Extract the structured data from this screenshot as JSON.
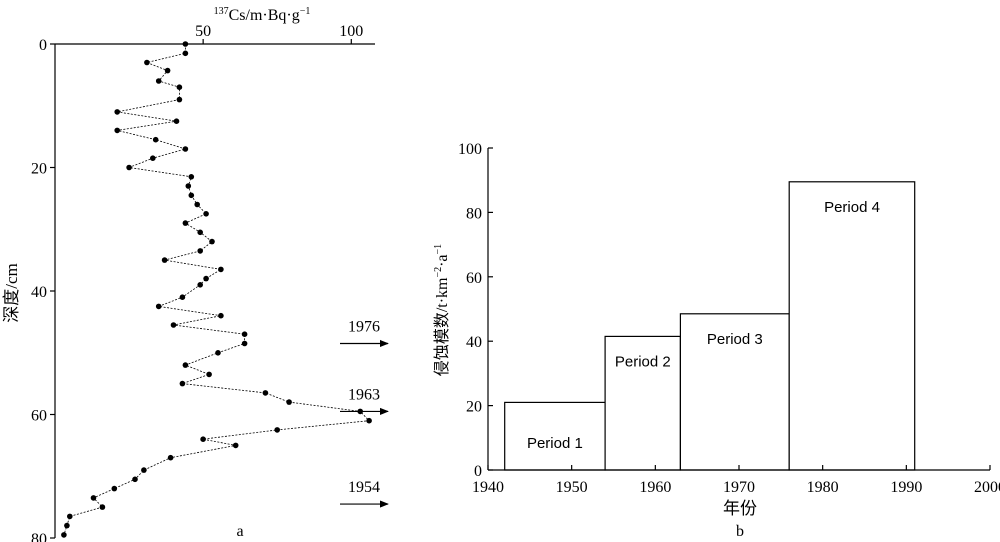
{
  "chart_data": [
    {
      "type": "scatter",
      "panel_label": "a",
      "xlabel_sup": "137",
      "xlabel_main": "Cs/m·Bq·g",
      "xlabel_exp": "−1",
      "ylabel": "深度/cm",
      "xlim": [
        0,
        108
      ],
      "ylim": [
        0,
        80
      ],
      "x_ticks": [
        "50",
        "100"
      ],
      "y_ticks": [
        "0",
        "20",
        "40",
        "60",
        "80"
      ],
      "y_reversed": true,
      "series": [
        {
          "points": [
            [
              44,
              0
            ],
            [
              44,
              1.5
            ],
            [
              31,
              3
            ],
            [
              38,
              4.3
            ],
            [
              35,
              6
            ],
            [
              42,
              7
            ],
            [
              42,
              9
            ],
            [
              21,
              11
            ],
            [
              41,
              12.5
            ],
            [
              21,
              14
            ],
            [
              34,
              15.5
            ],
            [
              44,
              17
            ],
            [
              33,
              18.5
            ],
            [
              25,
              20
            ],
            [
              46,
              21.5
            ],
            [
              45,
              23
            ],
            [
              46,
              24.5
            ],
            [
              48,
              26
            ],
            [
              51,
              27.5
            ],
            [
              44,
              29
            ],
            [
              49,
              30.5
            ],
            [
              53,
              32
            ],
            [
              49,
              33.5
            ],
            [
              37,
              35
            ],
            [
              56,
              36.5
            ],
            [
              51,
              38
            ],
            [
              49,
              39
            ],
            [
              43,
              41
            ],
            [
              35,
              42.5
            ],
            [
              56,
              44
            ],
            [
              40,
              45.5
            ],
            [
              64,
              47
            ],
            [
              64,
              48.5
            ],
            [
              55,
              50
            ],
            [
              44,
              52
            ],
            [
              52,
              53.5
            ],
            [
              43,
              55
            ],
            [
              71,
              56.5
            ],
            [
              79,
              58
            ],
            [
              103,
              59.5
            ],
            [
              106,
              61
            ],
            [
              75,
              62.5
            ],
            [
              50,
              64
            ],
            [
              61,
              65
            ],
            [
              39,
              67
            ],
            [
              30,
              69
            ],
            [
              27,
              70.5
            ],
            [
              20,
              72
            ],
            [
              13,
              73.5
            ],
            [
              16,
              75
            ],
            [
              5,
              76.5
            ],
            [
              4,
              78
            ],
            [
              3,
              79.5
            ]
          ]
        }
      ],
      "annotations": [
        {
          "label": "1976",
          "y": 48.5
        },
        {
          "label": "1963",
          "y": 59.5
        },
        {
          "label": "1954",
          "y": 74.5
        }
      ]
    },
    {
      "type": "bar",
      "panel_label": "b",
      "xlabel": "年份",
      "ylabel_main": "侵蚀模数/t·km",
      "ylabel_mid": "·a",
      "ylabel_exp1": "−2",
      "ylabel_exp2": "−1",
      "xlim": [
        1940,
        2000
      ],
      "ylim": [
        0,
        100
      ],
      "x_ticks": [
        "1940",
        "1950",
        "1960",
        "1970",
        "1980",
        "1990",
        "2000"
      ],
      "y_ticks": [
        "0",
        "20",
        "40",
        "60",
        "80",
        "100"
      ],
      "bars": [
        {
          "label": "Period 1",
          "start": 1942,
          "end": 1954,
          "value": 21
        },
        {
          "label": "Period 2",
          "start": 1954,
          "end": 1963,
          "value": 41.5
        },
        {
          "label": "Period 3",
          "start": 1963,
          "end": 1976,
          "value": 48.5
        },
        {
          "label": "Period 4",
          "start": 1976,
          "end": 1991,
          "value": 89.5
        }
      ]
    }
  ]
}
